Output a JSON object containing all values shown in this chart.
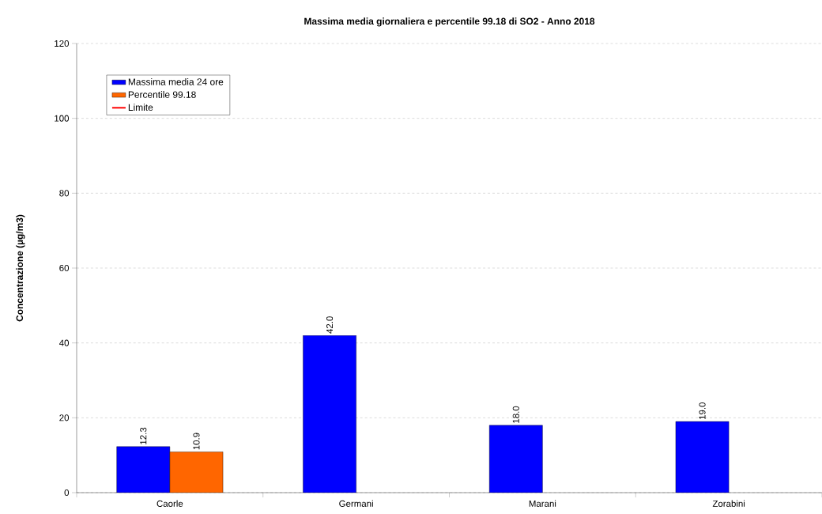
{
  "chart_data": {
    "type": "bar",
    "title": "Massima media giornaliera e percentile 99.18 di SO2 - Anno 2018",
    "ylabel": "Concentrazione (µg/m3)",
    "categories": [
      "Caorle",
      "Germani",
      "Marani",
      "Zorabini"
    ],
    "series": [
      {
        "name": "Massima media 24 ore",
        "color": "#0000ff",
        "values": [
          12.3,
          42.0,
          18.0,
          19.0
        ],
        "value_labels": [
          "12.3",
          "42.0",
          "18.0",
          "19.0"
        ]
      },
      {
        "name": "Percentile 99.18",
        "color": "#ff6600",
        "values": [
          10.9,
          null,
          null,
          null
        ],
        "value_labels": [
          "10.9",
          null,
          null,
          null
        ]
      },
      {
        "name": "Limite",
        "type": "line",
        "color": "#ff0000",
        "values": [
          null,
          null,
          null,
          null
        ]
      }
    ],
    "ylim": [
      0,
      120
    ],
    "yticks": [
      0,
      20,
      40,
      60,
      80,
      100,
      120
    ],
    "grid": "y",
    "legend": "top left"
  }
}
